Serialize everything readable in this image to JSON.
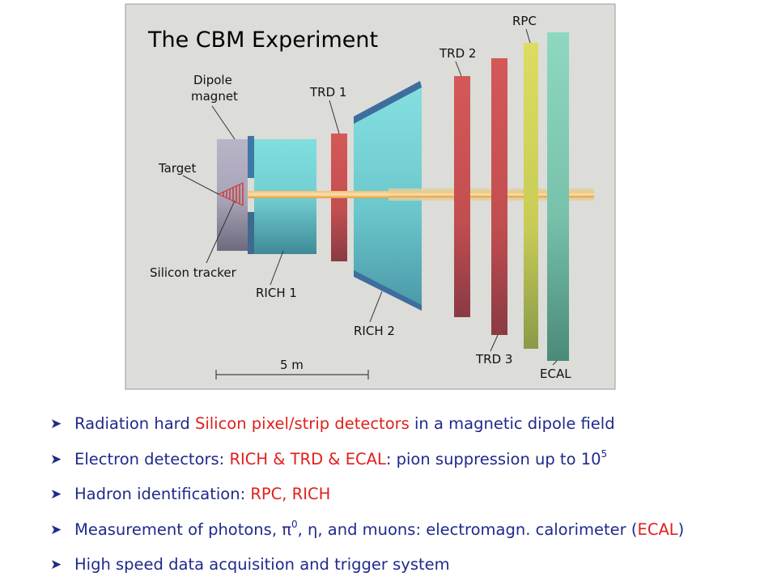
{
  "diagram": {
    "title": "The CBM Experiment",
    "labels": {
      "dipole_line1": "Dipole",
      "dipole_line2": "magnet",
      "target": "Target",
      "silicon": "Silicon tracker",
      "rich1": "RICH 1",
      "trd1": "TRD 1",
      "rich2": "RICH 2",
      "trd2": "TRD 2",
      "rpc": "RPC",
      "trd3": "TRD 3",
      "ecal": "ECAL",
      "scale": "5 m"
    },
    "colors": {
      "frame": "#dcdcd8",
      "magnet": "#b3aec2",
      "rich": "#7ddcda",
      "rich_edge": "#3d7aa0",
      "trd": "#cc5353",
      "rpc": "#d6d85a",
      "ecal": "#8ad8c0",
      "beam": "#f0a830"
    }
  },
  "bullets": [
    {
      "pre": "Radiation hard ",
      "red": "Silicon pixel/strip detectors",
      "post": " in a magnetic dipole field",
      "sup": "",
      "extra": ""
    },
    {
      "pre": "Electron detectors: ",
      "red": "RICH & TRD & ECAL",
      "post": ":  pion suppression up to 10",
      "sup": "5",
      "extra": ""
    },
    {
      "pre": "Hadron identification:  ",
      "red": "RPC, RICH",
      "post": "",
      "sup": "",
      "extra": ""
    },
    {
      "pre": "Measurement of photons, π",
      "red": "",
      "post": "",
      "sup": "0",
      "extra": ", η, and muons:  electromagn. calorimeter (",
      "red2": "ECAL",
      "close": ")"
    },
    {
      "pre": "High speed data acquisition and trigger system",
      "red": "",
      "post": "",
      "sup": "",
      "extra": ""
    }
  ]
}
